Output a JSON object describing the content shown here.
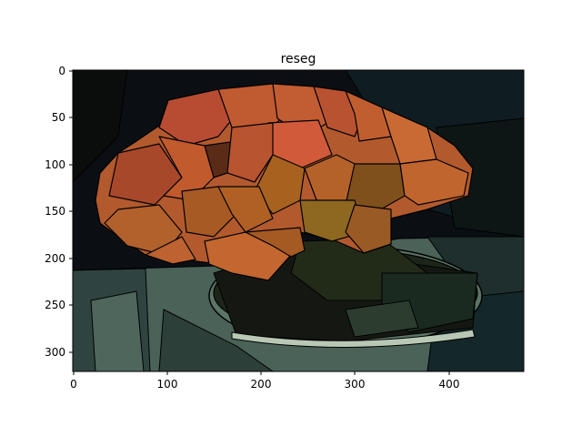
{
  "figure": {
    "title": "reseg",
    "x_ticks": [
      "0",
      "100",
      "200",
      "300",
      "400"
    ],
    "y_ticks": [
      "0",
      "50",
      "100",
      "150",
      "200",
      "250",
      "300"
    ]
  },
  "image": {
    "description_colors": {
      "background": "#0c1114",
      "background_right": "#0f1e22",
      "table_green": "#4a6258",
      "table_dark": "#2b3c36",
      "bowl_dark": "#14170f",
      "bowl_green": "#1e2a1a",
      "flower_orange": "#c0592f",
      "flower_red": "#c84a34",
      "flower_brown": "#9a5a25",
      "flower_dark": "#6d3a1c",
      "outline": "#000000"
    }
  }
}
